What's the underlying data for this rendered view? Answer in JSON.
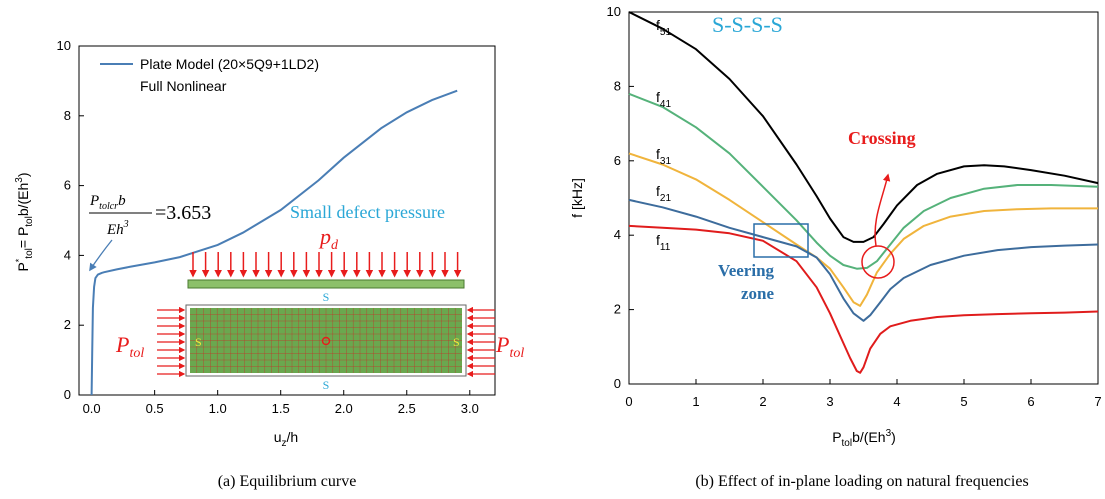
{
  "colors": {
    "plate_curve": "#4a7eb5",
    "f51": "#000000",
    "f41": "#55b27a",
    "f31": "#f0b43c",
    "f21": "#3d6c9c",
    "f11": "#e01c1c",
    "cyan_text": "#2aa7d6",
    "red": "#e81c1c",
    "mesh_green": "#6aa84f",
    "veering_blue": "#2a6ea8"
  },
  "captions": {
    "a": "(a)  Equilibrium curve",
    "b": "(b)  Effect of in-plane loading on natural frequencies"
  },
  "chart_data": [
    {
      "type": "line",
      "xlabel": "u",
      "xlabel_sub": "z",
      "xlabel_tail": "/h",
      "ylabel_parts": [
        "P",
        "*",
        "tol",
        "= P",
        "tol",
        "b/(Eh",
        "3",
        ")"
      ],
      "xlim": [
        -0.1,
        3.2
      ],
      "ylim": [
        0,
        10
      ],
      "xticks": [
        "0.0",
        "0.5",
        "1.0",
        "1.5",
        "2.0",
        "2.5",
        "3.0"
      ],
      "xtick_values": [
        0,
        0.5,
        1.0,
        1.5,
        2.0,
        2.5,
        3.0
      ],
      "yticks": [
        "0",
        "2",
        "4",
        "6",
        "8",
        "10"
      ],
      "ytick_values": [
        0,
        2,
        4,
        6,
        8,
        10
      ],
      "legend": [
        "Plate Model (20×5Q9+1LD2)",
        "Full Nonlinear"
      ],
      "series": [
        {
          "name": "Plate Model (20×5Q9+1LD2)",
          "x": [
            0,
            0.005,
            0.01,
            0.02,
            0.03,
            0.05,
            0.08,
            0.1,
            0.2,
            0.3,
            0.5,
            0.7,
            1.0,
            1.2,
            1.5,
            1.8,
            2.0,
            2.3,
            2.5,
            2.7,
            2.9
          ],
          "y": [
            0,
            1.2,
            2.5,
            3.1,
            3.35,
            3.45,
            3.5,
            3.52,
            3.6,
            3.67,
            3.8,
            3.95,
            4.3,
            4.65,
            5.3,
            6.15,
            6.8,
            7.65,
            8.1,
            8.45,
            8.72
          ]
        }
      ],
      "annotations": {
        "critical_num": "P",
        "critical_num_sub": "tolcr",
        "critical_num_tail": "b",
        "critical_den": "Eh",
        "critical_den_sup": "3",
        "critical_value": "=3.653",
        "small_defect": "Small defect pressure",
        "pd": "p",
        "pd_sub": "d",
        "ptol": "P",
        "ptol_sub": "tol",
        "support_label": "S"
      }
    },
    {
      "type": "line",
      "title": "S-S-S-S",
      "xlabel": "P",
      "xlabel_sub": "tol",
      "xlabel_tail": "b/(Eh",
      "xlabel_sup": "3",
      "xlabel_end": ")",
      "ylabel": "f [kHz]",
      "xlim": [
        0,
        7
      ],
      "ylim": [
        0,
        10
      ],
      "xticks": [
        "0",
        "1",
        "2",
        "3",
        "4",
        "5",
        "6",
        "7"
      ],
      "xtick_values": [
        0,
        1,
        2,
        3,
        4,
        5,
        6,
        7
      ],
      "yticks": [
        "0",
        "2",
        "4",
        "6",
        "8",
        "10"
      ],
      "ytick_values": [
        0,
        2,
        4,
        6,
        8,
        10
      ],
      "series": [
        {
          "name": "f51",
          "x": [
            0,
            0.5,
            1,
            1.5,
            2,
            2.5,
            2.8,
            3.0,
            3.2,
            3.35,
            3.5,
            3.65,
            3.8,
            4.0,
            4.3,
            4.6,
            5.0,
            5.3,
            5.6,
            6.0,
            6.5,
            7.0
          ],
          "y": [
            10.0,
            9.55,
            9.0,
            8.2,
            7.2,
            5.9,
            5.05,
            4.45,
            3.95,
            3.82,
            3.82,
            3.95,
            4.3,
            4.8,
            5.35,
            5.65,
            5.85,
            5.88,
            5.85,
            5.75,
            5.6,
            5.4
          ]
        },
        {
          "name": "f41",
          "x": [
            0,
            0.5,
            1,
            1.5,
            2,
            2.5,
            2.8,
            3.0,
            3.2,
            3.4,
            3.55,
            3.7,
            3.9,
            4.1,
            4.4,
            4.8,
            5.3,
            5.8,
            6.3,
            7.0
          ],
          "y": [
            7.8,
            7.45,
            6.9,
            6.2,
            5.3,
            4.4,
            3.8,
            3.45,
            3.2,
            3.1,
            3.12,
            3.3,
            3.75,
            4.2,
            4.65,
            5.0,
            5.25,
            5.35,
            5.35,
            5.3
          ]
        },
        {
          "name": "f31",
          "x": [
            0,
            0.5,
            1,
            1.5,
            2,
            2.5,
            2.8,
            3.0,
            3.2,
            3.35,
            3.45,
            3.55,
            3.7,
            3.9,
            4.1,
            4.4,
            4.8,
            5.3,
            5.8,
            6.3,
            7.0
          ],
          "y": [
            6.2,
            5.9,
            5.5,
            4.95,
            4.35,
            3.75,
            3.4,
            3.1,
            2.6,
            2.2,
            2.1,
            2.4,
            3.0,
            3.5,
            3.9,
            4.25,
            4.5,
            4.65,
            4.7,
            4.72,
            4.72
          ]
        },
        {
          "name": "f21",
          "x": [
            0,
            0.5,
            1,
            1.5,
            2,
            2.5,
            2.8,
            3.0,
            3.2,
            3.35,
            3.5,
            3.6,
            3.75,
            3.9,
            4.1,
            4.5,
            5.0,
            5.5,
            6.0,
            6.5,
            7.0
          ],
          "y": [
            4.95,
            4.75,
            4.5,
            4.2,
            3.95,
            3.7,
            3.4,
            2.95,
            2.3,
            1.9,
            1.7,
            1.85,
            2.2,
            2.55,
            2.85,
            3.2,
            3.45,
            3.6,
            3.68,
            3.72,
            3.75
          ]
        },
        {
          "name": "f11",
          "x": [
            0,
            0.5,
            1,
            1.5,
            2,
            2.5,
            2.8,
            3.0,
            3.15,
            3.3,
            3.4,
            3.45,
            3.5,
            3.6,
            3.75,
            3.9,
            4.2,
            4.6,
            5.0,
            5.5,
            6.0,
            6.5,
            7.0
          ],
          "y": [
            4.25,
            4.2,
            4.15,
            4.05,
            3.85,
            3.3,
            2.6,
            1.9,
            1.3,
            0.7,
            0.35,
            0.3,
            0.45,
            0.95,
            1.35,
            1.55,
            1.7,
            1.8,
            1.85,
            1.88,
            1.9,
            1.92,
            1.95
          ]
        }
      ],
      "series_labels": [
        {
          "base": "f",
          "sub": "51",
          "series": "f51"
        },
        {
          "base": "f",
          "sub": "41",
          "series": "f41"
        },
        {
          "base": "f",
          "sub": "31",
          "series": "f31"
        },
        {
          "base": "f",
          "sub": "21",
          "series": "f21"
        },
        {
          "base": "f",
          "sub": "11",
          "series": "f11"
        }
      ],
      "annotations": {
        "crossing": "Crossing",
        "veering_line1": "Veering",
        "veering_line2": "zone"
      }
    }
  ]
}
